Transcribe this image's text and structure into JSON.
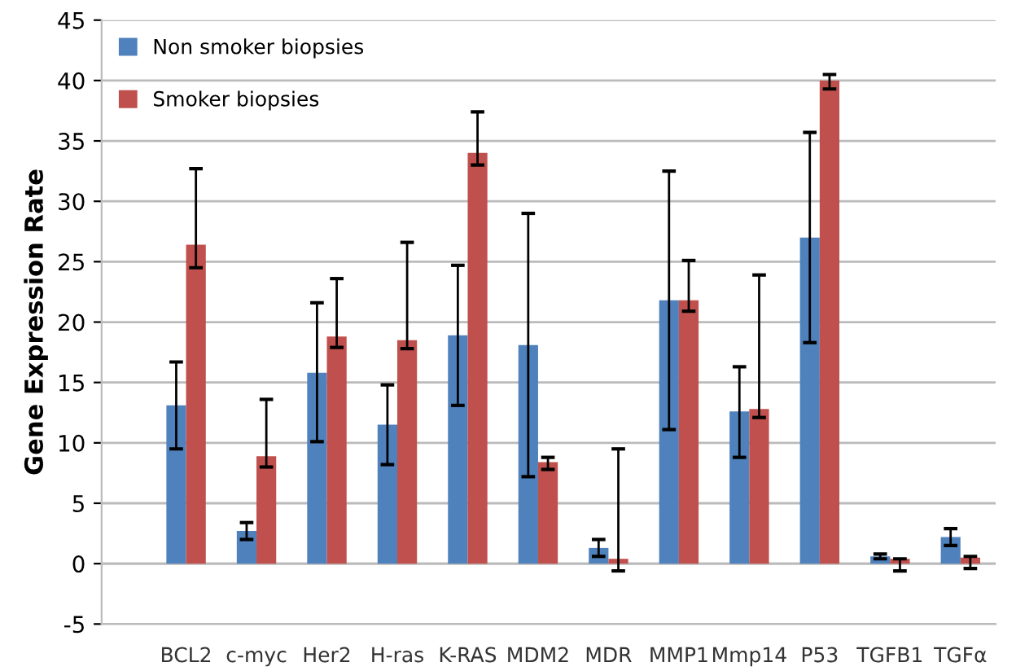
{
  "chart_data": {
    "type": "bar",
    "ylabel": "Gene Expression Rate",
    "categories": [
      "BCL2",
      "c-myc",
      "Her2",
      "H-ras",
      "K-RAS",
      "MDM2",
      "MDR",
      "MMP1",
      "Mmp14",
      "P53",
      "TGFB1",
      "TGFα"
    ],
    "series": [
      {
        "name": "Non smoker biopsies",
        "color": "#4f81bd",
        "values": [
          13.1,
          2.7,
          15.8,
          11.5,
          18.9,
          18.1,
          1.3,
          21.8,
          12.6,
          27.0,
          0.6,
          2.2
        ],
        "errors": [
          [
            9.5,
            16.7
          ],
          [
            2.0,
            3.4
          ],
          [
            10.1,
            21.6
          ],
          [
            8.2,
            14.8
          ],
          [
            13.1,
            24.7
          ],
          [
            7.2,
            29.0
          ],
          [
            0.6,
            2.0
          ],
          [
            11.1,
            32.5
          ],
          [
            8.8,
            16.3
          ],
          [
            18.3,
            35.7
          ],
          [
            0.4,
            0.8
          ],
          [
            1.5,
            2.9
          ]
        ]
      },
      {
        "name": "Smoker biopsies",
        "color": "#c0504d",
        "values": [
          26.4,
          8.9,
          18.8,
          18.5,
          34.0,
          8.4,
          0.4,
          21.8,
          12.8,
          40.0,
          0.4,
          0.5
        ],
        "errors": [
          [
            24.5,
            32.7
          ],
          [
            8.0,
            13.6
          ],
          [
            17.9,
            23.6
          ],
          [
            17.8,
            26.6
          ],
          [
            33.0,
            37.4
          ],
          [
            7.8,
            8.8
          ],
          [
            -0.6,
            9.5
          ],
          [
            20.9,
            25.1
          ],
          [
            12.1,
            23.9
          ],
          [
            39.3,
            40.5
          ],
          [
            -0.6,
            0.4
          ],
          [
            -0.4,
            0.6
          ]
        ]
      }
    ],
    "ylim": [
      -5,
      45
    ],
    "yticks": [
      -5,
      0,
      5,
      10,
      15,
      20,
      25,
      30,
      35,
      40,
      45
    ],
    "grid": "y",
    "legend": "top left"
  }
}
